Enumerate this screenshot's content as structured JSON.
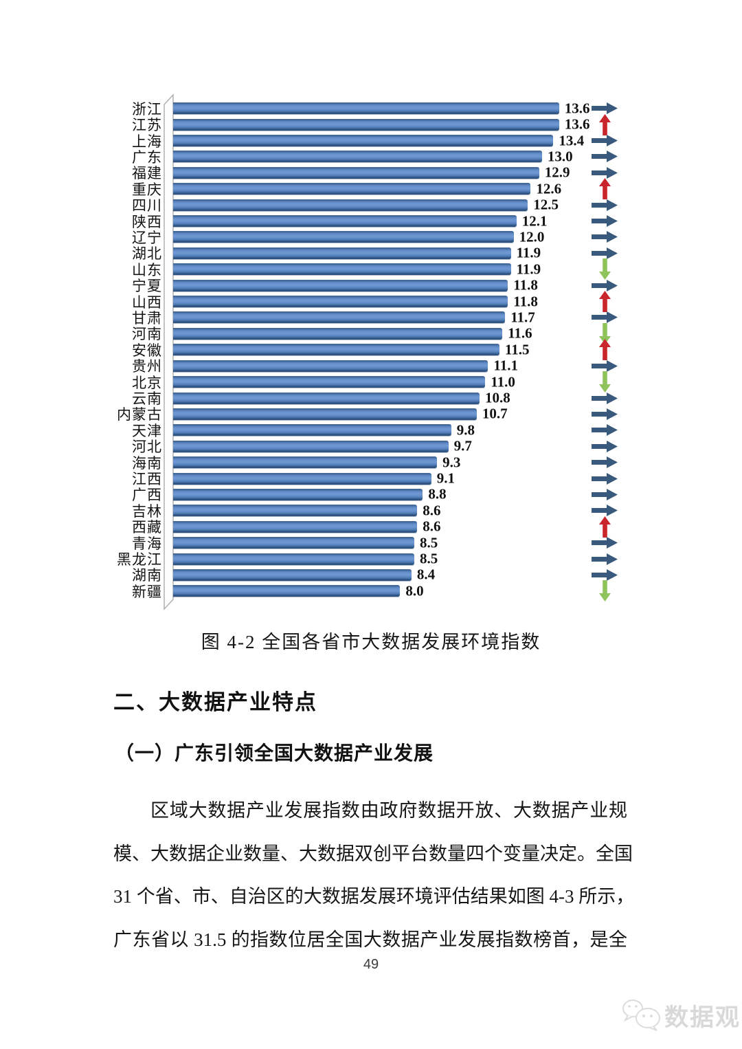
{
  "figure": {
    "caption": "图 4-2 全国各省市大数据发展环境指数"
  },
  "chart_data": {
    "type": "bar",
    "orientation": "horizontal",
    "title": "图 4-2 全国各省市大数据发展环境指数",
    "categories": [
      "浙江",
      "江苏",
      "上海",
      "广东",
      "福建",
      "重庆",
      "四川",
      "陕西",
      "辽宁",
      "湖北",
      "山东",
      "宁夏",
      "山西",
      "甘肃",
      "河南",
      "安徽",
      "贵州",
      "北京",
      "云南",
      "内蒙古",
      "天津",
      "河北",
      "海南",
      "江西",
      "广西",
      "吉林",
      "西藏",
      "青海",
      "黑龙江",
      "湖南",
      "新疆"
    ],
    "values": [
      13.6,
      13.6,
      13.4,
      13.0,
      12.9,
      12.6,
      12.5,
      12.1,
      12.0,
      11.9,
      11.9,
      11.8,
      11.8,
      11.7,
      11.6,
      11.5,
      11.1,
      11.0,
      10.8,
      10.7,
      9.8,
      9.7,
      9.3,
      9.1,
      8.8,
      8.6,
      8.6,
      8.5,
      8.5,
      8.4,
      8.0
    ],
    "value_labels": [
      "13.6",
      "13.6",
      "13.4",
      "13.0",
      "12.9",
      "12.6",
      "12.5",
      "12.1",
      "12.0",
      "11.9",
      "11.9",
      "11.8",
      "11.8",
      "11.7",
      "11.6",
      "11.5",
      "11.1",
      "11.0",
      "10.8",
      "10.7",
      "9.8",
      "9.7",
      "9.3",
      "9.1",
      "8.8",
      "8.6",
      "8.6",
      "8.5",
      "8.5",
      "8.4",
      "8.0"
    ],
    "trends": [
      "flat",
      "up",
      "flat",
      "flat",
      "flat",
      "up",
      "flat",
      "flat",
      "flat",
      "flat",
      "down",
      "flat",
      "up",
      "flat",
      "down",
      "up",
      "flat",
      "down",
      "flat",
      "flat",
      "flat",
      "flat",
      "flat",
      "flat",
      "flat",
      "flat",
      "up",
      "flat",
      "flat",
      "flat",
      "down"
    ],
    "x_range": [
      0,
      14
    ],
    "grid": "off",
    "legend": "none",
    "bar_color": "#4f81bd",
    "trend_colors": {
      "flat": "#3a5a7d",
      "up": "#c9252c",
      "down": "#8fc45c"
    }
  },
  "section": {
    "heading": "二、大数据产业特点",
    "subheading": "（一）广东引领全国大数据产业发展",
    "paragraph_lines": [
      "区域大数据产业发展指数由政府数据开放、大数据产业规",
      "模、大数据企业数量、大数据双创平台数量四个变量决定。全国",
      "31 个省、市、自治区的大数据发展环境评估结果如图 4-3 所示，",
      "广东省以 31.5 的指数位居全国大数据产业发展指数榜首，是全"
    ]
  },
  "footer": {
    "page_number": "49"
  },
  "watermark": {
    "text": "数据观",
    "icon": "wechat-icon"
  }
}
